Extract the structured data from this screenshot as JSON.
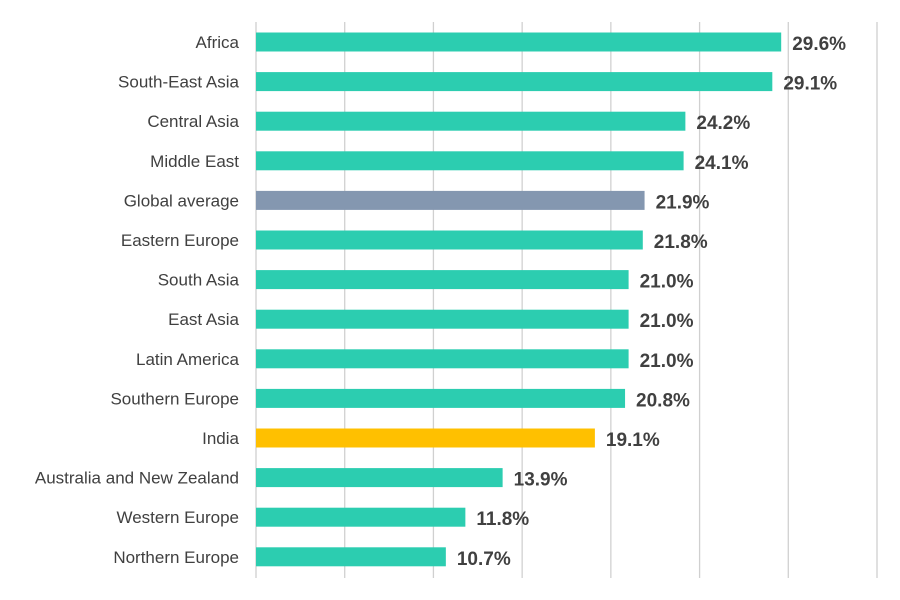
{
  "chart_data": {
    "type": "bar",
    "orientation": "horizontal",
    "categories": [
      "Africa",
      "South-East Asia",
      "Central Asia",
      "Middle East",
      "Global average",
      "Eastern Europe",
      "South Asia",
      "East Asia",
      "Latin America",
      "Southern Europe",
      "India",
      "Australia and New Zealand",
      "Western Europe",
      "Northern Europe"
    ],
    "values": [
      29.6,
      29.1,
      24.2,
      24.1,
      21.9,
      21.8,
      21.0,
      21.0,
      21.0,
      20.8,
      19.1,
      13.9,
      11.8,
      10.7
    ],
    "value_labels": [
      "29.6%",
      "29.1%",
      "24.2%",
      "24.1%",
      "21.9%",
      "21.8%",
      "21.0%",
      "21.0%",
      "21.0%",
      "20.8%",
      "19.1%",
      "13.9%",
      "11.8%",
      "10.7%"
    ],
    "xlim": [
      0,
      35
    ],
    "x_gridline_step": 5,
    "grid": true,
    "legend": "none",
    "colors": {
      "default": "#2ccdb0",
      "Global average": "#8497b0",
      "India": "#ffc000"
    },
    "title": "",
    "xlabel": "",
    "ylabel": ""
  }
}
